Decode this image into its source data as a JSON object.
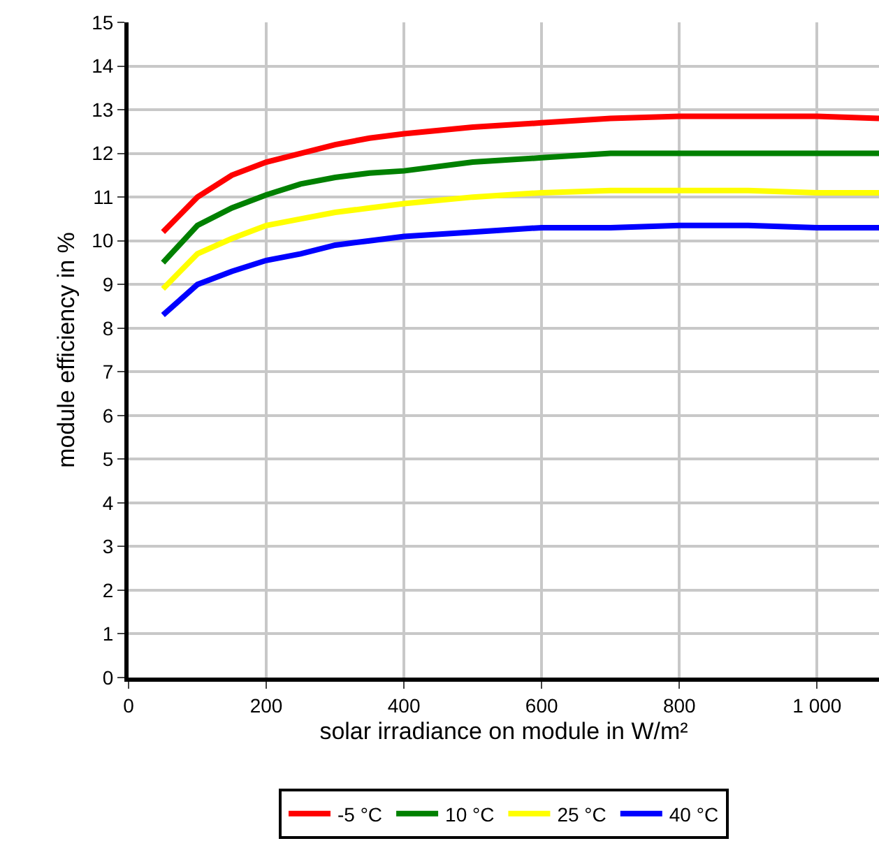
{
  "chart_data": {
    "type": "line",
    "xlabel": "solar irradiance on module in W/m²",
    "ylabel": "module efficiency in %",
    "x": [
      50,
      100,
      150,
      200,
      250,
      300,
      350,
      400,
      500,
      600,
      700,
      800,
      900,
      1000,
      1090
    ],
    "series": [
      {
        "name": "-5 °C",
        "color": "#ff0000",
        "values": [
          10.2,
          11.0,
          11.5,
          11.8,
          12.0,
          12.2,
          12.35,
          12.45,
          12.6,
          12.7,
          12.8,
          12.85,
          12.85,
          12.85,
          12.8
        ]
      },
      {
        "name": "10 °C",
        "color": "#008000",
        "values": [
          9.5,
          10.35,
          10.75,
          11.05,
          11.3,
          11.45,
          11.55,
          11.6,
          11.8,
          11.9,
          12.0,
          12.0,
          12.0,
          12.0,
          12.0
        ]
      },
      {
        "name": "25 °C",
        "color": "#ffff00",
        "values": [
          8.9,
          9.7,
          10.05,
          10.35,
          10.5,
          10.65,
          10.75,
          10.85,
          11.0,
          11.1,
          11.15,
          11.15,
          11.15,
          11.1,
          11.1
        ]
      },
      {
        "name": "40 °C",
        "color": "#0000ff",
        "values": [
          8.3,
          9.0,
          9.3,
          9.55,
          9.7,
          9.9,
          10.0,
          10.1,
          10.2,
          10.3,
          10.3,
          10.35,
          10.35,
          10.3,
          10.3
        ]
      }
    ],
    "xlim": [
      0,
      1090
    ],
    "xticks": [
      0,
      200,
      400,
      600,
      800,
      {
        "value": 1000,
        "label": "1 000"
      }
    ],
    "ylim": [
      0,
      15
    ],
    "yticks": [
      0,
      1,
      2,
      3,
      4,
      5,
      6,
      7,
      8,
      9,
      10,
      11,
      12,
      13,
      14,
      15
    ],
    "grid": true,
    "legend": "bottom",
    "marker": "none",
    "line_style": "solid"
  }
}
